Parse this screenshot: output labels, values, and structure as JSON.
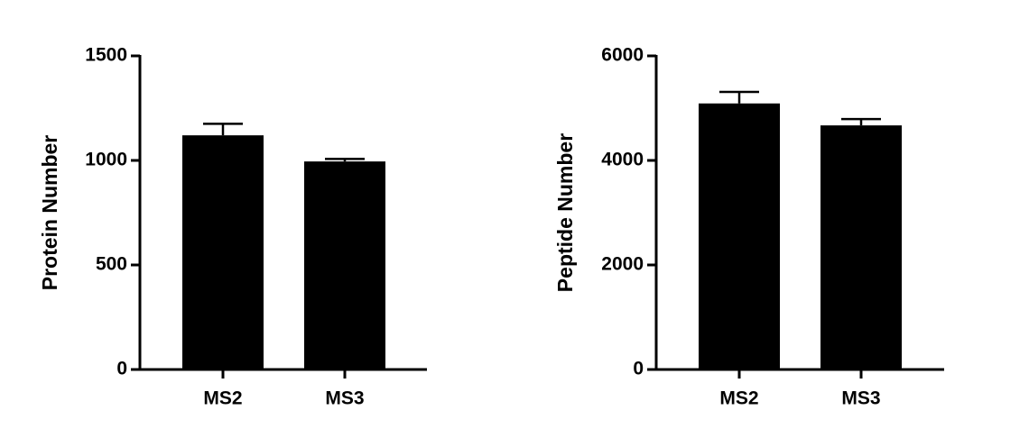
{
  "chart_data": [
    {
      "type": "bar",
      "y_label": "Protein Number",
      "categories": [
        "MS2",
        "MS3"
      ],
      "values": [
        1120,
        995
      ],
      "errors": [
        55,
        12
      ],
      "color": "#000000",
      "ylim": [
        0,
        1500
      ],
      "yticks": [
        0,
        500,
        1000,
        1500
      ]
    },
    {
      "type": "bar",
      "y_label": "Peptide Number",
      "categories": [
        "MS2",
        "MS3"
      ],
      "values": [
        5090,
        4670
      ],
      "errors": [
        220,
        120
      ],
      "color": "#000000",
      "ylim": [
        0,
        6000
      ],
      "yticks": [
        0,
        2000,
        4000,
        6000
      ]
    }
  ]
}
